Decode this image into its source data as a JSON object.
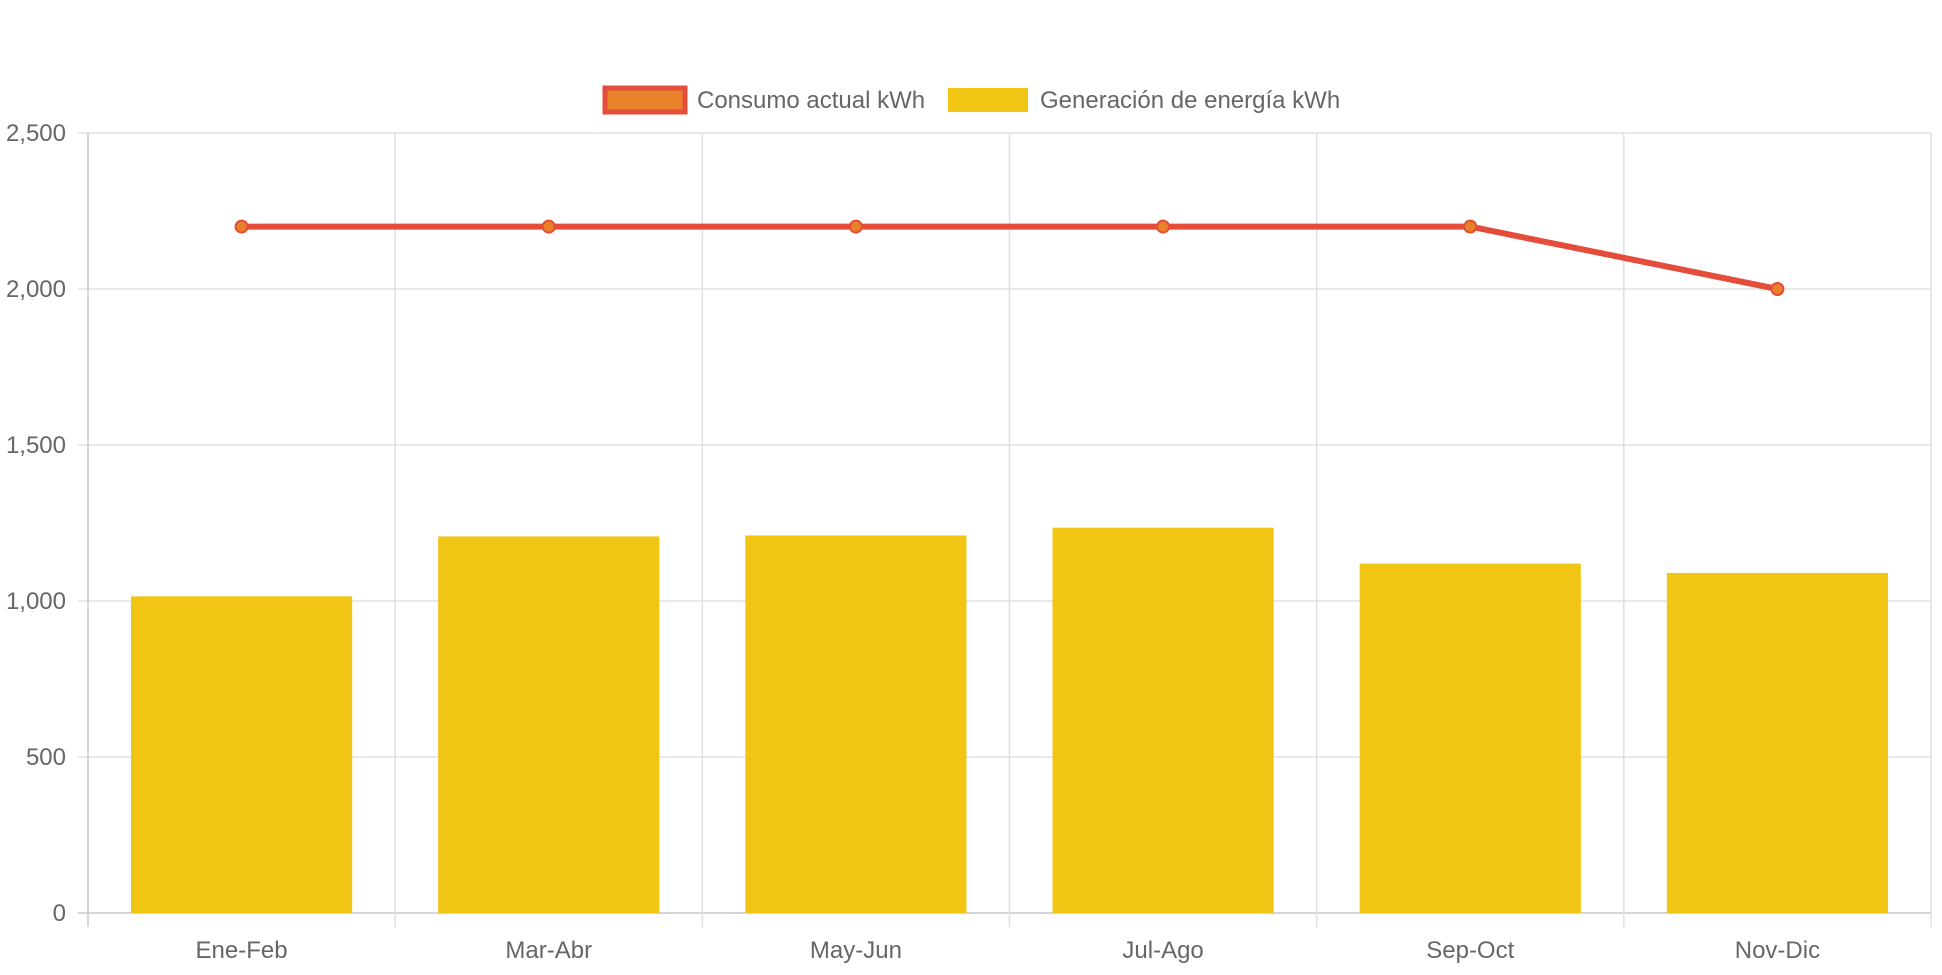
{
  "chart_data": {
    "type": "bar",
    "categories": [
      "Ene-Feb",
      "Mar-Abr",
      "May-Jun",
      "Jul-Ago",
      "Sep-Oct",
      "Nov-Dic"
    ],
    "series": [
      {
        "name": "Consumo actual kWh",
        "kind": "line",
        "values": [
          2200,
          2200,
          2200,
          2200,
          2200,
          2000
        ],
        "color": "#e44d3a",
        "point_color": "#e8822a"
      },
      {
        "name": "Generación de energía kWh",
        "kind": "bar",
        "values": [
          1015,
          1207,
          1210,
          1235,
          1120,
          1090
        ],
        "color": "#f0c514"
      }
    ],
    "ylim": [
      0,
      2500
    ],
    "yticks": [
      0,
      500,
      1000,
      1500,
      2000,
      2500
    ],
    "ytick_labels": [
      "0",
      "500",
      "1,000",
      "1,500",
      "2,000",
      "2,500"
    ],
    "grid": true,
    "legend_position": "top-center",
    "grid_color": "#e0e0e0",
    "axis_color": "#c8c8c8"
  }
}
